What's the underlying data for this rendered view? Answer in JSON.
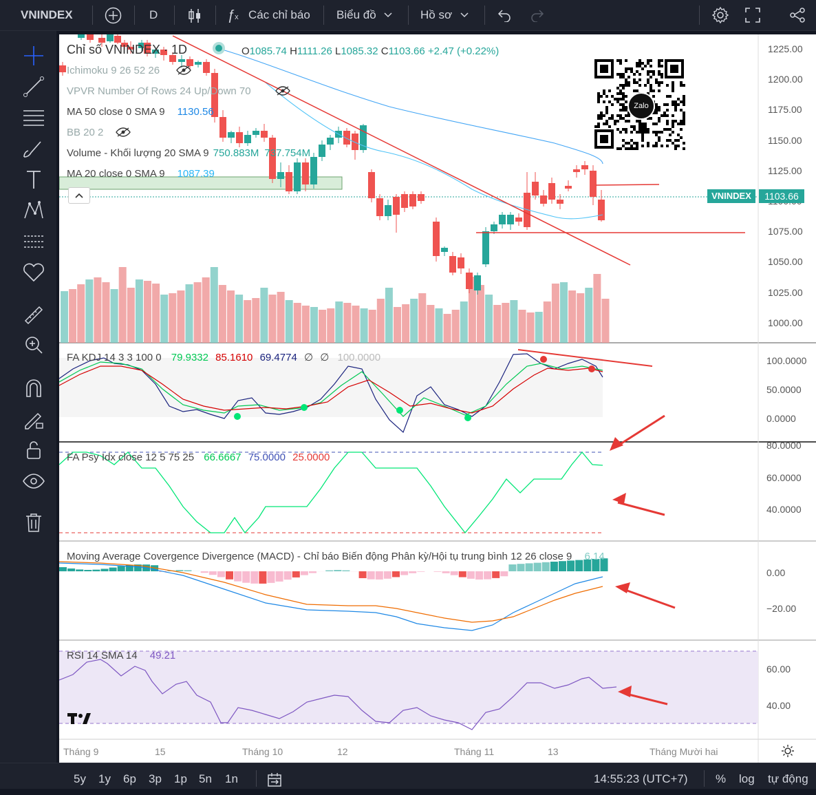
{
  "topbar": {
    "symbol": "VNINDEX",
    "interval": "D",
    "indicators_label": "Các chỉ báo",
    "chart_label": "Biểu đồ",
    "profile_label": "Hồ sơ"
  },
  "legend": {
    "title": "Chỉ số VNINDEX · 1D",
    "o_label": "O",
    "o": "1085.74",
    "h_label": "H",
    "h": "1111.26",
    "l_label": "L",
    "l": "1085.32",
    "c_label": "C",
    "c": "1103.66",
    "change": "+2.47 (+0.22%)",
    "ichimoku": "Ichimoku 9 26 52 26",
    "vpvr": "VPVR Number Of Rows 24 Up/Down 70",
    "ma50": "MA 50 close 0 SMA 9",
    "ma50_val": "1130.56",
    "bb": "BB 20 2",
    "volume": "Volume - Khối lượng 20 SMA 9",
    "vol_val1": "750.883M",
    "vol_val2": "737.754M",
    "ma20": "MA 20 close 0 SMA 9",
    "ma20_val": "1087.39"
  },
  "price_axis": {
    "labels": [
      "1225.00",
      "1200.00",
      "1175.00",
      "1150.00",
      "1125.00",
      "1100.00",
      "1075.00",
      "1050.00",
      "1025.00",
      "1000.00"
    ],
    "tag_symbol": "VNINDEX",
    "tag_price": "1103.66"
  },
  "kdj": {
    "label": "FA KDJ 14 3 3 100 0",
    "v1": "79.9332",
    "v2": "85.1610",
    "v3": "69.4774",
    "v4": "∅",
    "v5": "∅",
    "v6": "100.0000",
    "axis": [
      "100.0000",
      "50.0000",
      "0.0000"
    ]
  },
  "psy": {
    "label": "FA Psy Idx close 12 5 75 25",
    "v1": "66.6667",
    "v2": "75.0000",
    "v3": "25.0000",
    "axis": [
      "80.0000",
      "60.0000",
      "40.0000"
    ]
  },
  "macd": {
    "label": "Moving Average Covergence Divergence (MACD) - Chỉ báo Biến động Phân kỳ/Hội tụ trung bình 12 26 close 9",
    "v1": "6.14",
    "axis": [
      "0.00",
      "−20.00"
    ]
  },
  "rsi": {
    "label": "RSI 14 SMA 14",
    "v1": "49.21",
    "axis": [
      "60.00",
      "40.00"
    ]
  },
  "time_axis": [
    "Tháng 9",
    "15",
    "Tháng 10",
    "12",
    "Tháng 11",
    "13",
    "Tháng Mười hai"
  ],
  "bottombar": {
    "ranges": [
      "5y",
      "1y",
      "6p",
      "3p",
      "1p",
      "5n",
      "1n"
    ],
    "time": "14:55:23 (UTC+7)",
    "percent": "%",
    "log": "log",
    "auto": "tự động"
  },
  "qr_brand": "Zalo",
  "colors": {
    "up": "#26a69a",
    "down": "#ef5350",
    "bg": "#131722"
  }
}
